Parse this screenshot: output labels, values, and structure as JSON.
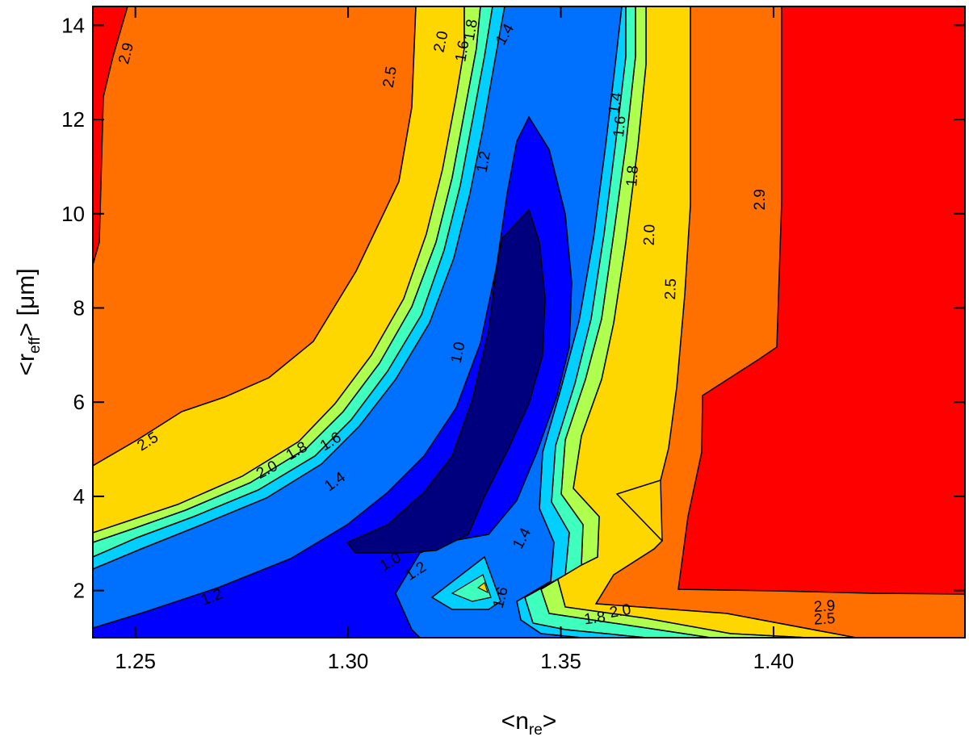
{
  "chart_data": {
    "type": "filled-contour",
    "xlabel_main": "<n",
    "xlabel_sub": "re",
    "xlabel_end": ">",
    "ylabel_main": "<r",
    "ylabel_sub": "eff",
    "ylabel_end": "> [μm]",
    "xlim": [
      1.24,
      1.445
    ],
    "ylim": [
      1.0,
      14.4
    ],
    "x_ticks": [
      {
        "value": 1.25,
        "label": "1.25"
      },
      {
        "value": 1.3,
        "label": "1.30"
      },
      {
        "value": 1.35,
        "label": "1.35"
      },
      {
        "value": 1.4,
        "label": "1.40"
      }
    ],
    "y_ticks": [
      {
        "value": 2,
        "label": "2"
      },
      {
        "value": 4,
        "label": "4"
      },
      {
        "value": 6,
        "label": "6"
      },
      {
        "value": 8,
        "label": "8"
      },
      {
        "value": 10,
        "label": "10"
      },
      {
        "value": 12,
        "label": "12"
      },
      {
        "value": 14,
        "label": "14"
      }
    ],
    "levels": [
      1.0,
      1.2,
      1.4,
      1.6,
      1.8,
      2.0,
      2.5,
      2.9
    ],
    "level_colors": [
      "#00007e",
      "#0000fe",
      "#0070ff",
      "#00cfff",
      "#3fffbf",
      "#afff4f",
      "#ffd700",
      "#ff7000",
      "#fe0000"
    ],
    "contour_regions": [
      {
        "level": 2.5,
        "color": "#ff7000",
        "points": [
          [
            1.24,
            4.55
          ],
          [
            1.25,
            5.2
          ],
          [
            1.26,
            5.75
          ],
          [
            1.27,
            6.05
          ],
          [
            1.28,
            6.3
          ],
          [
            1.29,
            7.1
          ],
          [
            1.3,
            8.6
          ],
          [
            1.31,
            10.6
          ],
          [
            1.315,
            12.3
          ],
          [
            1.315,
            14.4
          ],
          [
            1.377,
            14.4
          ],
          [
            1.377,
            10.4
          ],
          [
            1.374,
            8.3
          ],
          [
            1.372,
            6.2
          ],
          [
            1.37,
            4.9
          ],
          [
            1.367,
            4.1
          ],
          [
            1.373,
            2.8
          ],
          [
            1.365,
            2.45
          ],
          [
            1.36,
            2.1
          ],
          [
            1.37,
            1.4
          ],
          [
            1.39,
            1.3
          ],
          [
            1.42,
            1.15
          ],
          [
            1.435,
            1.0
          ],
          [
            1.445,
            1.0
          ],
          [
            1.445,
            14.4
          ]
        ]
      },
      {
        "level": 2.9,
        "color": "#fe0000",
        "points": [
          [
            1.24,
            14.4
          ],
          [
            1.24,
            8.6
          ],
          [
            1.244,
            9.2
          ],
          [
            1.245,
            12.2
          ],
          [
            1.247,
            13.3
          ],
          [
            1.25,
            14.4
          ]
        ]
      },
      {
        "level": 2.9,
        "color": "#fe0000",
        "points": [
          [
            1.398,
            14.4
          ],
          [
            1.397,
            10.5
          ],
          [
            1.397,
            7.0
          ],
          [
            1.39,
            6.6
          ],
          [
            1.38,
            6.0
          ],
          [
            1.38,
            4.9
          ],
          [
            1.378,
            3.0
          ],
          [
            1.376,
            2.05
          ],
          [
            1.4,
            2.0
          ],
          [
            1.42,
            1.9
          ],
          [
            1.445,
            1.85
          ],
          [
            1.445,
            14.4
          ]
        ]
      }
    ],
    "contour_labels": [
      {
        "x": 1.248,
        "y": 13.4,
        "angle": -75,
        "text": "2.9"
      },
      {
        "x": 1.31,
        "y": 12.9,
        "angle": -80,
        "text": "2.5"
      },
      {
        "x": 1.253,
        "y": 5.15,
        "angle": -32,
        "text": "2.5"
      },
      {
        "x": 1.322,
        "y": 13.65,
        "angle": -78,
        "text": "2.0"
      },
      {
        "x": 1.327,
        "y": 13.45,
        "angle": -80,
        "text": "1.6"
      },
      {
        "x": 1.329,
        "y": 13.9,
        "angle": -80,
        "text": "1.8"
      },
      {
        "x": 1.337,
        "y": 13.8,
        "angle": -60,
        "text": "1.4"
      },
      {
        "x": 1.332,
        "y": 11.1,
        "angle": -80,
        "text": "1.2"
      },
      {
        "x": 1.363,
        "y": 12.35,
        "angle": -82,
        "text": "1.4"
      },
      {
        "x": 1.364,
        "y": 11.85,
        "angle": -84,
        "text": "1.6"
      },
      {
        "x": 1.367,
        "y": 10.8,
        "angle": -86,
        "text": "1.8"
      },
      {
        "x": 1.371,
        "y": 9.55,
        "angle": -88,
        "text": "2.0"
      },
      {
        "x": 1.376,
        "y": 8.4,
        "angle": -88,
        "text": "2.5"
      },
      {
        "x": 1.397,
        "y": 10.3,
        "angle": -90,
        "text": "2.9"
      },
      {
        "x": 1.326,
        "y": 7.05,
        "angle": -78,
        "text": "1.0"
      },
      {
        "x": 1.281,
        "y": 4.55,
        "angle": -28,
        "text": "2.0"
      },
      {
        "x": 1.288,
        "y": 4.95,
        "angle": -30,
        "text": "1.8"
      },
      {
        "x": 1.296,
        "y": 5.15,
        "angle": -32,
        "text": "1.6"
      },
      {
        "x": 1.297,
        "y": 4.3,
        "angle": -36,
        "text": "1.4"
      },
      {
        "x": 1.31,
        "y": 2.6,
        "angle": -30,
        "text": "1.0"
      },
      {
        "x": 1.316,
        "y": 2.4,
        "angle": -33,
        "text": "1.2"
      },
      {
        "x": 1.341,
        "y": 3.1,
        "angle": -62,
        "text": "1.4"
      },
      {
        "x": 1.268,
        "y": 1.85,
        "angle": -20,
        "text": "1.2"
      },
      {
        "x": 1.336,
        "y": 1.85,
        "angle": -75,
        "text": "1.6"
      },
      {
        "x": 1.358,
        "y": 1.4,
        "angle": -8,
        "text": "1.8"
      },
      {
        "x": 1.364,
        "y": 1.55,
        "angle": -10,
        "text": "2.0"
      },
      {
        "x": 1.412,
        "y": 1.65,
        "angle": -4,
        "text": "2.9"
      },
      {
        "x": 1.412,
        "y": 1.38,
        "angle": -4,
        "text": "2.5"
      }
    ]
  }
}
